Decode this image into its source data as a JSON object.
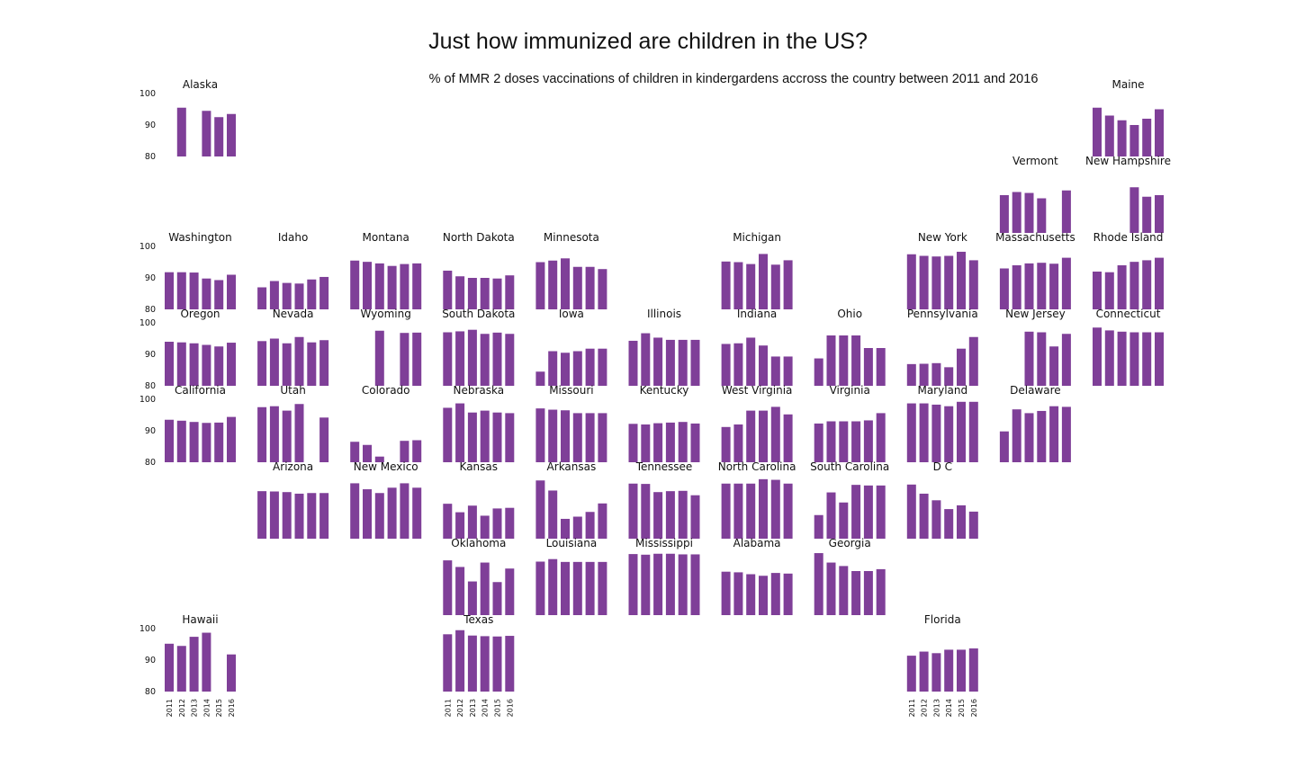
{
  "title": "Just how immunized are children in the US?",
  "subtitle": "% of MMR 2 doses vaccinations of children in kindergardens accross the country between 2011 and 2016",
  "colors": {
    "bar": "#7f3f98"
  },
  "chart_data": {
    "type": "bar",
    "layout": "small-multiples tile grid map",
    "years": [
      "2011",
      "2012",
      "2013",
      "2014",
      "2015",
      "2016"
    ],
    "y_ticks": [
      "80",
      "90",
      "100"
    ],
    "ylim": [
      80,
      100
    ],
    "states": [
      {
        "name": "Alaska",
        "row": 0,
        "col": 0,
        "values": [
          null,
          95.5,
          null,
          94.5,
          92.5,
          93.5
        ]
      },
      {
        "name": "Maine",
        "row": 0,
        "col": 10,
        "values": [
          95.5,
          93,
          91.5,
          90,
          92,
          95
        ]
      },
      {
        "name": "Vermont",
        "row": 1,
        "col": 9,
        "values": [
          92,
          93,
          92.7,
          91,
          null,
          93.5
        ]
      },
      {
        "name": "New Hampshire",
        "row": 1,
        "col": 10,
        "values": [
          null,
          null,
          null,
          94.5,
          91.5,
          92
        ]
      },
      {
        "name": "Washington",
        "row": 2,
        "col": 0,
        "values": [
          91.8,
          91.8,
          91.7,
          89.8,
          89.3,
          91
        ]
      },
      {
        "name": "Idaho",
        "row": 2,
        "col": 1,
        "values": [
          87,
          89,
          88.4,
          88.2,
          89.5,
          90.3
        ]
      },
      {
        "name": "Montana",
        "row": 2,
        "col": 2,
        "values": [
          95.5,
          95.1,
          94.6,
          93.8,
          94.4,
          94.6
        ]
      },
      {
        "name": "North Dakota",
        "row": 2,
        "col": 3,
        "values": [
          92.3,
          90.5,
          90,
          90,
          89.8,
          90.8
        ]
      },
      {
        "name": "Minnesota",
        "row": 2,
        "col": 4,
        "values": [
          95,
          95.5,
          96.2,
          93.5,
          93.5,
          92.8
        ]
      },
      {
        "name": "Michigan",
        "row": 2,
        "col": 6,
        "values": [
          95.2,
          95,
          94.4,
          97.6,
          94.2,
          95.6
        ]
      },
      {
        "name": "New York",
        "row": 2,
        "col": 8,
        "values": [
          97.5,
          97,
          96.8,
          97,
          98.3,
          95.6
        ]
      },
      {
        "name": "Massachusetts",
        "row": 2,
        "col": 9,
        "values": [
          93,
          94,
          94.6,
          94.8,
          94.5,
          96.4
        ]
      },
      {
        "name": "Rhode Island",
        "row": 2,
        "col": 10,
        "values": [
          92,
          91.8,
          94,
          95.1,
          95.6,
          96.4
        ]
      },
      {
        "name": "Oregon",
        "row": 3,
        "col": 0,
        "values": [
          94,
          93.8,
          93.5,
          93,
          92.5,
          93.7
        ]
      },
      {
        "name": "Nevada",
        "row": 3,
        "col": 1,
        "values": [
          94.2,
          95,
          93.5,
          95.5,
          93.8,
          94.5
        ]
      },
      {
        "name": "Wyoming",
        "row": 3,
        "col": 2,
        "values": [
          null,
          null,
          97.5,
          null,
          96.8,
          96.9
        ]
      },
      {
        "name": "South Dakota",
        "row": 3,
        "col": 3,
        "values": [
          97,
          97.3,
          97.8,
          96.5,
          96.9,
          96.5
        ]
      },
      {
        "name": "Iowa",
        "row": 3,
        "col": 4,
        "values": [
          84.5,
          91,
          90.5,
          91,
          91.8,
          91.8
        ]
      },
      {
        "name": "Illinois",
        "row": 3,
        "col": 5,
        "values": [
          94.3,
          96.7,
          95.3,
          94.6,
          94.6,
          94.6
        ]
      },
      {
        "name": "Indiana",
        "row": 3,
        "col": 6,
        "values": [
          93.3,
          93.5,
          95.3,
          92.8,
          89.3,
          89.3
        ]
      },
      {
        "name": "Ohio",
        "row": 3,
        "col": 7,
        "values": [
          88.7,
          96,
          96,
          96,
          92,
          92
        ]
      },
      {
        "name": "Pennsylvania",
        "row": 3,
        "col": 8,
        "values": [
          86.9,
          87,
          87.2,
          85.9,
          91.8,
          95.5
        ]
      },
      {
        "name": "New Jersey",
        "row": 3,
        "col": 9,
        "values": [
          null,
          null,
          97.2,
          97,
          92.5,
          96.5
        ]
      },
      {
        "name": "Connecticut",
        "row": 3,
        "col": 10,
        "values": [
          98.5,
          97.6,
          97.2,
          97,
          97,
          97
        ]
      },
      {
        "name": "California",
        "row": 4,
        "col": 0,
        "values": [
          93.5,
          93.2,
          92.8,
          92.5,
          92.6,
          94.4
        ]
      },
      {
        "name": "Utah",
        "row": 4,
        "col": 1,
        "values": [
          97.5,
          97.8,
          96.4,
          98.5,
          null,
          94.2
        ]
      },
      {
        "name": "Colorado",
        "row": 4,
        "col": 2,
        "values": [
          86.5,
          85.5,
          81.8,
          null,
          86.8,
          87
        ]
      },
      {
        "name": "Nebraska",
        "row": 4,
        "col": 3,
        "values": [
          97.3,
          98.7,
          95.8,
          96.4,
          95.8,
          95.6
        ]
      },
      {
        "name": "Missouri",
        "row": 4,
        "col": 4,
        "values": [
          97.1,
          96.7,
          96.5,
          95.6,
          95.6,
          95.6
        ]
      },
      {
        "name": "Kentucky",
        "row": 4,
        "col": 5,
        "values": [
          92.2,
          92,
          92.4,
          92.6,
          92.8,
          92.3
        ]
      },
      {
        "name": "West Virginia",
        "row": 4,
        "col": 6,
        "values": [
          91.2,
          92,
          96.4,
          96.4,
          97.6,
          95.2
        ]
      },
      {
        "name": "Virginia",
        "row": 4,
        "col": 7,
        "values": [
          92.3,
          93,
          93,
          93,
          93.3,
          95.6
        ]
      },
      {
        "name": "Maryland",
        "row": 4,
        "col": 8,
        "values": [
          98.7,
          98.7,
          98.3,
          97.8,
          99.2,
          99.2
        ]
      },
      {
        "name": "Delaware",
        "row": 4,
        "col": 9,
        "values": [
          89.8,
          96.8,
          95.6,
          96.3,
          97.8,
          97.6
        ]
      },
      {
        "name": "Arizona",
        "row": 5,
        "col": 1,
        "values": [
          95.1,
          95,
          94.8,
          94.3,
          94.5,
          94.5
        ]
      },
      {
        "name": "New Mexico",
        "row": 5,
        "col": 2,
        "values": [
          97.6,
          95.7,
          94.5,
          96.2,
          97.6,
          96.2
        ]
      },
      {
        "name": "Kansas",
        "row": 5,
        "col": 3,
        "values": [
          91.1,
          88.4,
          90.5,
          87.3,
          89.6,
          89.8
        ]
      },
      {
        "name": "Arkansas",
        "row": 5,
        "col": 4,
        "values": [
          98.5,
          95.3,
          86.3,
          87,
          88.5,
          91.2
        ]
      },
      {
        "name": "Tennessee",
        "row": 5,
        "col": 5,
        "values": [
          97.5,
          97.4,
          94.8,
          95.1,
          95.2,
          93.8
        ]
      },
      {
        "name": "North Carolina",
        "row": 5,
        "col": 6,
        "values": [
          97.5,
          97.5,
          97.5,
          98.9,
          98.7,
          97.5
        ]
      },
      {
        "name": "South Carolina",
        "row": 5,
        "col": 7,
        "values": [
          87.5,
          94.7,
          91.5,
          97.1,
          96.9,
          96.9
        ]
      },
      {
        "name": "D C",
        "row": 5,
        "col": 8,
        "values": [
          97.2,
          94.3,
          92.2,
          89.4,
          90.6,
          88.6
        ]
      },
      {
        "name": "Oklahoma",
        "row": 6,
        "col": 3,
        "values": [
          97.4,
          95.3,
          90.7,
          96.7,
          90.5,
          94.8
        ]
      },
      {
        "name": "Louisiana",
        "row": 6,
        "col": 4,
        "values": [
          97,
          97.8,
          96.9,
          96.9,
          96.9,
          96.9
        ]
      },
      {
        "name": "Mississippi",
        "row": 6,
        "col": 5,
        "values": [
          99.4,
          99.2,
          99.5,
          99.5,
          99.3,
          99.3
        ]
      },
      {
        "name": "Alabama",
        "row": 6,
        "col": 6,
        "values": [
          93.8,
          93.6,
          93,
          92.5,
          93.4,
          93.2
        ]
      },
      {
        "name": "Georgia",
        "row": 6,
        "col": 7,
        "values": [
          99.7,
          96.7,
          95.6,
          94,
          94,
          94.6
        ]
      },
      {
        "name": "Hawaii",
        "row": 7,
        "col": 0,
        "values": [
          95.2,
          94.5,
          97.4,
          98.7,
          null,
          91.8
        ]
      },
      {
        "name": "Texas",
        "row": 7,
        "col": 3,
        "values": [
          98.2,
          99.5,
          97.8,
          97.6,
          97.5,
          97.7
        ]
      },
      {
        "name": "Florida",
        "row": 7,
        "col": 8,
        "values": [
          91.4,
          92.7,
          92.2,
          93.3,
          93.3,
          93.7
        ]
      }
    ]
  }
}
